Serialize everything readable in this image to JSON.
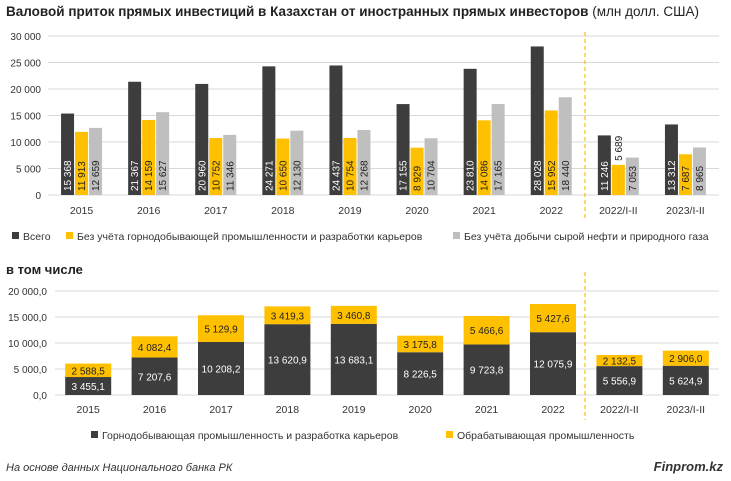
{
  "header": {
    "title_bold": "Валовой приток прямых инвестиций в Казахстан от иностранных прямых инвесторов",
    "title_unit": "(млн долл. США)",
    "subtitle": "в том числе"
  },
  "footer": {
    "source": "На основе данных Национального банка РК",
    "brand": "Finprom.kz"
  },
  "chart_data": [
    {
      "type": "bar",
      "categories": [
        "2015",
        "2016",
        "2017",
        "2018",
        "2019",
        "2020",
        "2021",
        "2022",
        "2022/I-II",
        "2023/I-II"
      ],
      "ylim": [
        0,
        30000
      ],
      "yticks": [
        0,
        5000,
        10000,
        15000,
        20000,
        25000,
        30000
      ],
      "ytick_labels": [
        "0",
        "5 000",
        "10 000",
        "15 000",
        "20 000",
        "25 000",
        "30 000"
      ],
      "grid": true,
      "legend_position": "bottom",
      "series": [
        {
          "name": "Всего",
          "color": "#3d3d3d",
          "values": [
            15368,
            21367,
            20960,
            24271,
            24437,
            17155,
            23810,
            28028,
            11246,
            13312
          ],
          "labels": [
            "15 368",
            "21 367",
            "20 960",
            "24 271",
            "24 437",
            "17 155",
            "23 810",
            "28 028",
            "11 246",
            "13 312"
          ]
        },
        {
          "name": "Без учёта горнодобывающей промышленности и разработки карьеров",
          "color": "#ffc000",
          "values": [
            11913,
            14159,
            10752,
            10650,
            10754,
            8929,
            14086,
            15952,
            5689,
            7687
          ],
          "labels": [
            "11 913",
            "14 159",
            "10 752",
            "10 650",
            "10 754",
            "8 929",
            "14 086",
            "15 952",
            "5 689",
            "7 687"
          ]
        },
        {
          "name": "Без учёта добычи сырой нефти и природного газа",
          "color": "#bfbfbf",
          "values": [
            12659,
            15627,
            11346,
            12130,
            12268,
            10704,
            17165,
            18440,
            7053,
            8965
          ],
          "labels": [
            "12 659",
            "15 627",
            "11 346",
            "12 130",
            "12 268",
            "10 704",
            "17 165",
            "18 440",
            "7 053",
            "8 965"
          ]
        }
      ]
    },
    {
      "type": "bar",
      "stacked": true,
      "categories": [
        "2015",
        "2016",
        "2017",
        "2018",
        "2019",
        "2020",
        "2021",
        "2022",
        "2022/I-II",
        "2023/I-II"
      ],
      "ylim": [
        0,
        20000
      ],
      "yticks": [
        0,
        5000,
        10000,
        15000,
        20000
      ],
      "ytick_labels": [
        "0,0",
        "5 000,0",
        "10 000,0",
        "15 000,0",
        "20 000,0"
      ],
      "grid": true,
      "legend_position": "bottom",
      "series": [
        {
          "name": "Горнодобывающая промышленность и разработка карьеров",
          "color": "#3d3d3d",
          "values": [
            3455.1,
            7207.6,
            10208.2,
            13620.9,
            13683.1,
            8226.5,
            9723.8,
            12075.9,
            5556.9,
            5624.9
          ],
          "labels": [
            "3 455,1",
            "7 207,6",
            "10 208,2",
            "13 620,9",
            "13 683,1",
            "8 226,5",
            "9 723,8",
            "12 075,9",
            "5 556,9",
            "5 624,9"
          ]
        },
        {
          "name": "Обрабатывающая промышленность",
          "color": "#ffc000",
          "values": [
            2588.5,
            4082.4,
            5129.9,
            3419.3,
            3460.8,
            3175.8,
            5466.6,
            5427.6,
            2132.5,
            2906.0
          ],
          "labels": [
            "2 588,5",
            "4 082,4",
            "5 129,9",
            "3 419,3",
            "3 460,8",
            "3 175,8",
            "5 466,6",
            "5 427,6",
            "2 132,5",
            "2 906,0"
          ]
        }
      ]
    }
  ]
}
